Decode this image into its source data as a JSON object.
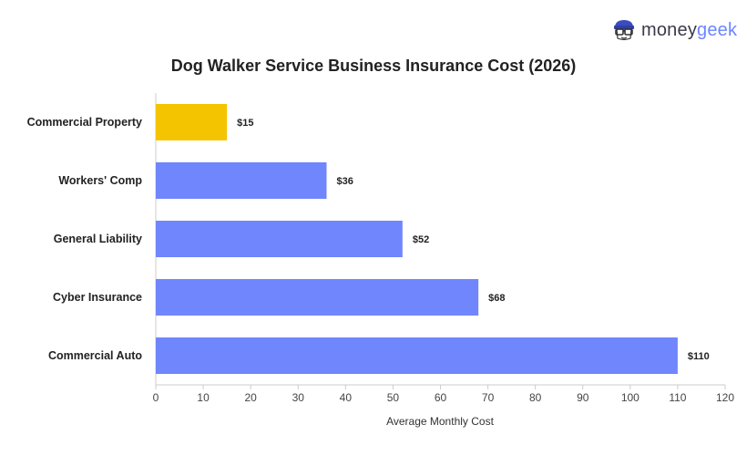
{
  "brand": {
    "money": "money",
    "geek": "geek",
    "icon": "geek-glasses-icon"
  },
  "chart_data": {
    "type": "bar",
    "orientation": "horizontal",
    "title": "Dog Walker Service Business Insurance Cost (2026)",
    "xlabel": "Average Monthly Cost",
    "ylabel": "",
    "categories": [
      "Commercial Property",
      "Workers' Comp",
      "General Liability",
      "Cyber Insurance",
      "Commercial Auto"
    ],
    "values": [
      15,
      36,
      52,
      68,
      110
    ],
    "value_labels": [
      "$15",
      "$36",
      "$52",
      "$68",
      "$110"
    ],
    "colors": [
      "#f5c400",
      "#7086fd",
      "#7086fd",
      "#7086fd",
      "#7086fd"
    ],
    "xlim": [
      0,
      120
    ],
    "xticks": [
      0,
      10,
      20,
      30,
      40,
      50,
      60,
      70,
      80,
      90,
      100,
      110,
      120
    ],
    "grid": false
  }
}
